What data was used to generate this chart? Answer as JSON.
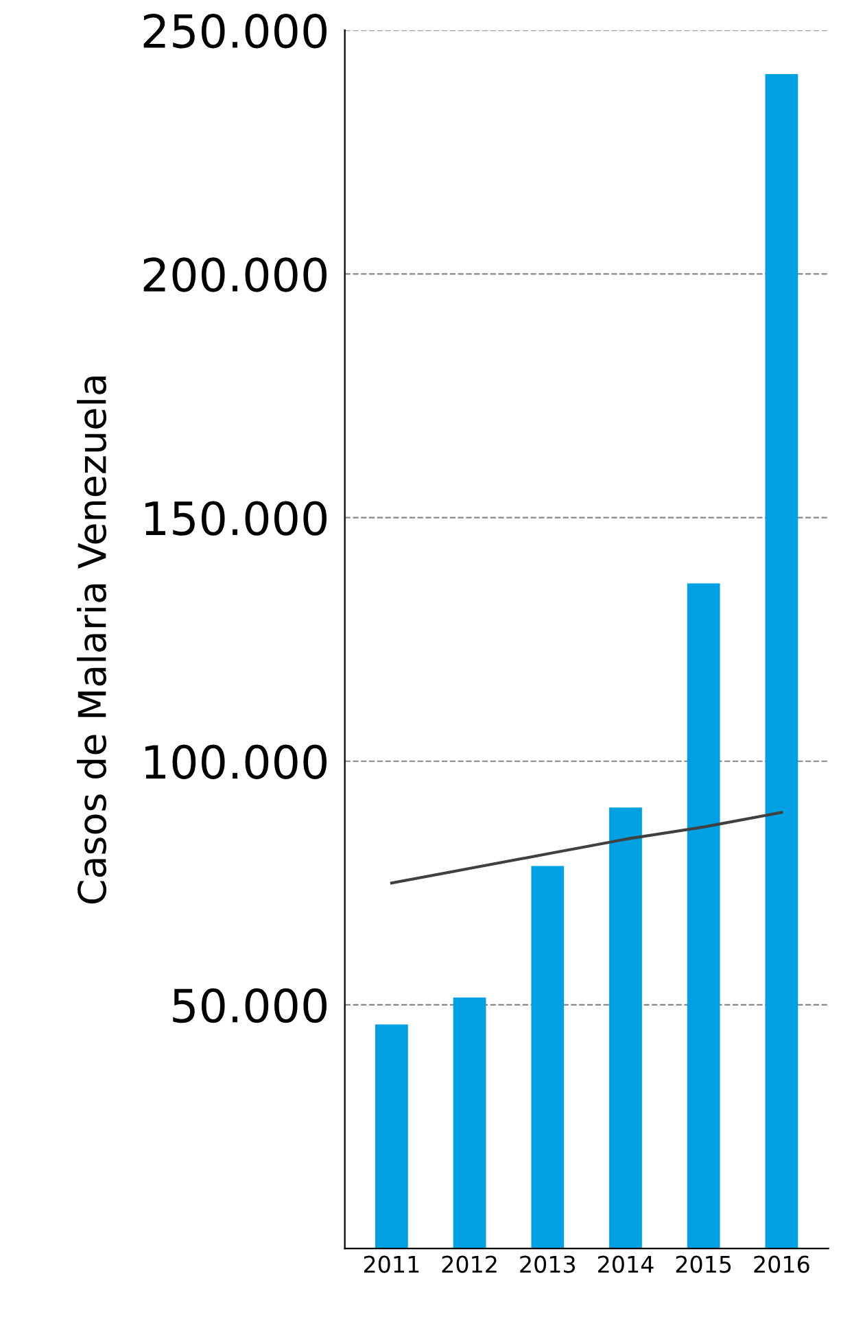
{
  "chart_data": {
    "type": "bar",
    "ylabel": "Casos de Malaria Venezuela",
    "categories": [
      "2011",
      "2012",
      "2013",
      "2014",
      "2015",
      "2016"
    ],
    "series": [
      {
        "color": "#00a0e3",
        "values": [
          46000,
          51500,
          78500,
          90500,
          136500,
          241000
        ]
      },
      {
        "type": "line",
        "color": "#404040",
        "values": [
          75000,
          78000,
          81000,
          84000,
          86500,
          89500
        ]
      }
    ],
    "ylim": [
      0,
      250000
    ],
    "yticks": [
      {
        "value": 50000,
        "label": "50.000"
      },
      {
        "value": 100000,
        "label": "100.000"
      },
      {
        "value": 150000,
        "label": "150.000"
      },
      {
        "value": 200000,
        "label": "200.000"
      },
      {
        "value": 250000,
        "label": "250.000"
      }
    ],
    "grid": "y",
    "legend": false,
    "line_style": "solid"
  }
}
